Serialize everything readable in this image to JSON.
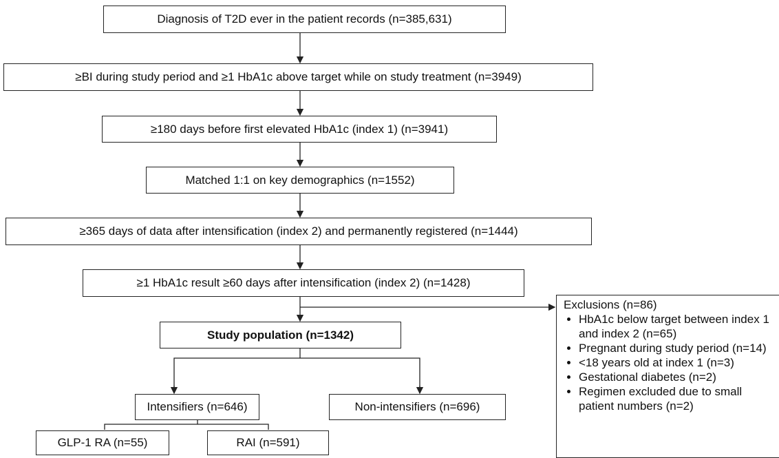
{
  "nodes": [
    {
      "label": "Diagnosis of T2D ever in the patient records (n=385,631)"
    },
    {
      "label": "≥BI during study period and ≥1 HbA1c above target while on study treatment (n=3949)"
    },
    {
      "label": "≥180 days before first elevated HbA1c (index 1) (n=3941)"
    },
    {
      "label": "Matched 1:1 on key demographics (n=1552)"
    },
    {
      "label": "≥365 days of data after intensification (index 2) and permanently registered (n=1444)"
    },
    {
      "label": "≥1 HbA1c result ≥60 days after intensification (index 2) (n=1428)"
    },
    {
      "label": "Study population (n=1342)"
    },
    {
      "label": "Intensifiers (n=646)"
    },
    {
      "label": "Non-intensifiers (n=696)"
    },
    {
      "label": "GLP-1 RA (n=55)"
    },
    {
      "label": "RAI (n=591)"
    }
  ],
  "exclusions": {
    "title": "Exclusions (n=86)",
    "items": [
      "HbA1c below target between index 1 and index 2 (n=65)",
      "Pregnant during study period (n=14)",
      "<18 years old at index 1 (n=3)",
      "Gestational diabetes (n=2)",
      "Regimen excluded due to small patient numbers (n=2)"
    ]
  }
}
